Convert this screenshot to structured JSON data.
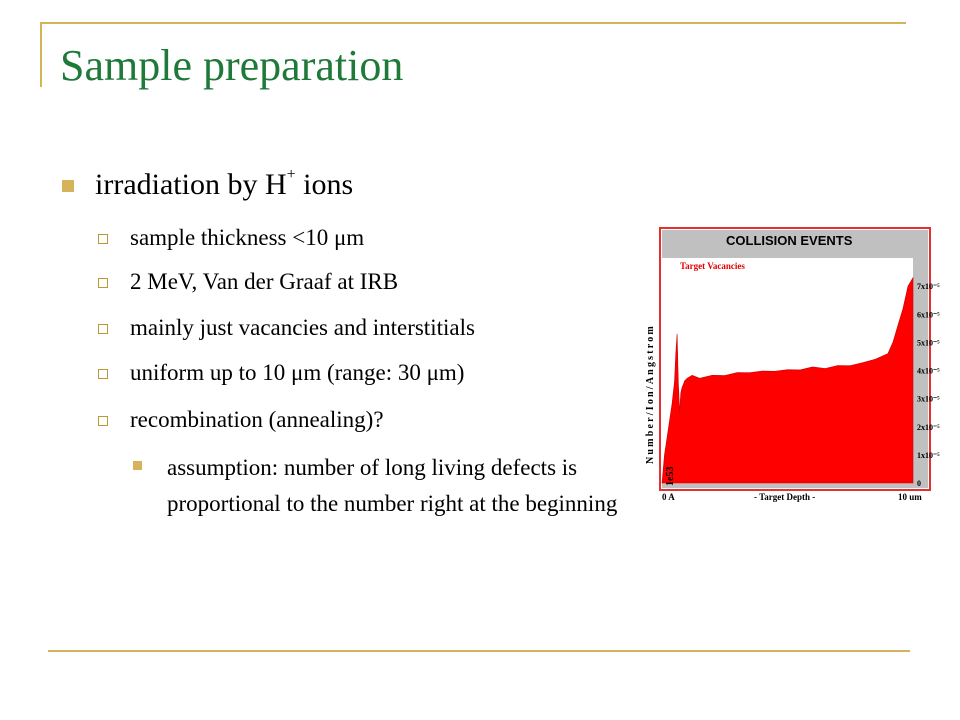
{
  "slide": {
    "title": "Sample preparation",
    "bullet1_main": "irradiation by H",
    "bullet1_sup": "+",
    "bullet1_tail": " ions",
    "sub_items": [
      "sample thickness <10 μm",
      "2 MeV, Van der Graaf at IRB",
      "mainly just vacancies and interstitials",
      "uniform up to 10 μm (range: 30 μm)",
      "recombination (annealing)?"
    ],
    "sub_sub_item": "assumption: number of long living defects is proportional to the number right at the beginning"
  },
  "colors": {
    "title": "#1f7a3a",
    "accent": "#d4b35a",
    "chart_fill": "#ff0000",
    "chart_border": "#e53030",
    "chart_bg": "#c0c0c0"
  },
  "chart_data": {
    "type": "area",
    "title": "COLLISION EVENTS",
    "series": [
      {
        "name": "Target Vacancies",
        "x": [
          0,
          0.1,
          0.2,
          0.3,
          0.4,
          0.5,
          0.55,
          0.6,
          0.65,
          0.7,
          0.75,
          0.8,
          0.85,
          0.9,
          1.0,
          1.2,
          1.5,
          2,
          2.5,
          3,
          3.5,
          4,
          4.5,
          5,
          5.5,
          6,
          6.5,
          7,
          7.5,
          8,
          8.5,
          9,
          9.2,
          9.4,
          9.6,
          9.8,
          10
        ],
        "values": [
          0.0,
          1e-05,
          1.6e-05,
          2.2e-05,
          2.8e-05,
          3.6e-05,
          4.6e-05,
          5.3e-05,
          3.6e-05,
          2.5e-05,
          3.2e-05,
          3.4e-05,
          3.5e-05,
          3.6e-05,
          3.75e-05,
          3.8e-05,
          3.75e-05,
          3.8e-05,
          3.85e-05,
          3.9e-05,
          3.95e-05,
          3.95e-05,
          4e-05,
          4e-05,
          4.05e-05,
          4.1e-05,
          4.1e-05,
          4.15e-05,
          4.2e-05,
          4.25e-05,
          4.4e-05,
          4.6e-05,
          5e-05,
          5.6e-05,
          6.2e-05,
          7e-05,
          7.3e-05
        ]
      }
    ],
    "ylabel": "Number/Ion/Angstrom",
    "xlabel": "- Target Depth -",
    "x_tick_left": "0 A",
    "x_tick_right": "10 um",
    "ylim": [
      0,
      8e-05
    ],
    "y_ticks": [
      {
        "value": 7e-05,
        "label": "7x10⁻⁵"
      },
      {
        "value": 6e-05,
        "label": "6x10⁻⁵"
      },
      {
        "value": 5e-05,
        "label": "5x10⁻⁵"
      },
      {
        "value": 4e-05,
        "label": "4x10⁻⁵"
      },
      {
        "value": 3e-05,
        "label": "3x10⁻⁵"
      },
      {
        "value": 2e-05,
        "label": "2x10⁻⁵"
      },
      {
        "value": 1e-05,
        "label": "1x10⁻⁵"
      },
      {
        "value": 0,
        "label": "0"
      }
    ],
    "annotation": "1e53"
  }
}
